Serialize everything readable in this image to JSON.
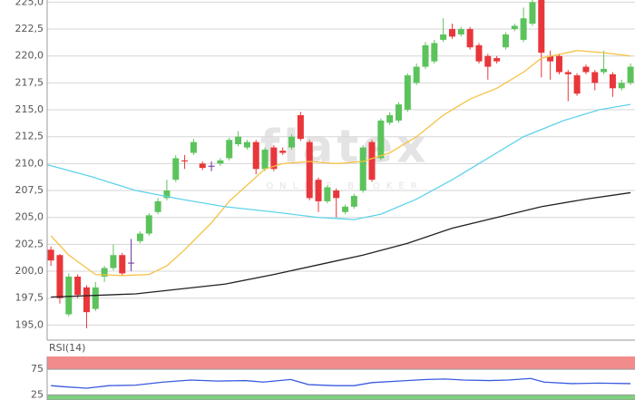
{
  "chart_data": [
    {
      "type": "candlestick",
      "watermark": {
        "text": "flatex",
        "subtitle": "ONLINE BROKER"
      },
      "xlim": [
        -0.42,
        65.5
      ],
      "ylim": [
        193.6,
        225.2
      ],
      "yticks": [
        {
          "value": 195,
          "label": "195,0"
        },
        {
          "value": 197.5,
          "label": "197,5"
        },
        {
          "value": 200,
          "label": "200,0"
        },
        {
          "value": 202.5,
          "label": "202,5"
        },
        {
          "value": 205,
          "label": "205,0"
        },
        {
          "value": 207.5,
          "label": "207,5"
        },
        {
          "value": 210,
          "label": "210,0"
        },
        {
          "value": 212.5,
          "label": "212,5"
        },
        {
          "value": 215,
          "label": "215,0"
        },
        {
          "value": 217.5,
          "label": "217,5"
        },
        {
          "value": 220,
          "label": "220,0"
        },
        {
          "value": 222.5,
          "label": "222,5"
        },
        {
          "value": 225,
          "label": "225,0"
        }
      ],
      "grid": true,
      "up_color": "#5cc35c",
      "down_color": "#e8363a",
      "flat_color": "#7030a0",
      "open": [
        202.0,
        201.5,
        196.0,
        199.5,
        198.5,
        196.5,
        199.5,
        200.3,
        201.5,
        200.8,
        202.8,
        203.5,
        205.5,
        206.8,
        208.5,
        210.3,
        211.0,
        210.0,
        209.8,
        210.0,
        210.5,
        211.8,
        211.5,
        212.0,
        209.5,
        211.5,
        211.2,
        211.5,
        214.5,
        212.0,
        208.5,
        206.5,
        207.5,
        205.5,
        206.0,
        207.5,
        212.0,
        210.5,
        213.8,
        214.0,
        215.0,
        217.5,
        219.0,
        219.5,
        221.5,
        222.5,
        222.0,
        222.5,
        221.0,
        220.0,
        219.8,
        220.8,
        222.5,
        221.5,
        223.0,
        225.2,
        220.0,
        220.0,
        218.5,
        218.2,
        219.0,
        218.5,
        218.5,
        218.3,
        217.0,
        217.5
      ],
      "high": [
        202.3,
        201.6,
        199.8,
        199.7,
        198.7,
        199.0,
        200.5,
        202.5,
        201.7,
        203.0,
        203.7,
        205.4,
        206.8,
        208.5,
        210.8,
        210.8,
        212.3,
        210.2,
        210.2,
        210.5,
        212.4,
        213.0,
        212.2,
        212.2,
        211.5,
        211.7,
        211.5,
        212.7,
        214.8,
        212.2,
        208.7,
        208.0,
        207.7,
        206.2,
        207.2,
        211.7,
        212.2,
        214.2,
        214.8,
        215.7,
        218.4,
        219.3,
        221.3,
        221.5,
        223.5,
        223.0,
        222.7,
        222.7,
        221.2,
        220.2,
        220.0,
        222.2,
        223.0,
        224.5,
        225.2,
        225.2,
        220.5,
        220.2,
        218.7,
        218.4,
        219.2,
        218.7,
        220.5,
        218.5,
        217.8,
        219.3
      ],
      "low": [
        200.5,
        197.0,
        195.8,
        197.5,
        194.7,
        196.3,
        199.0,
        200.1,
        199.6,
        200.0,
        202.6,
        203.3,
        205.3,
        206.6,
        208.3,
        209.5,
        210.8,
        209.4,
        209.3,
        209.8,
        210.3,
        211.6,
        211.3,
        209.0,
        209.3,
        209.3,
        210.8,
        211.3,
        212.1,
        206.6,
        205.5,
        206.3,
        205.0,
        205.3,
        205.8,
        207.3,
        208.3,
        210.3,
        213.6,
        213.8,
        214.8,
        217.3,
        218.8,
        219.3,
        221.3,
        221.6,
        221.8,
        220.6,
        219.3,
        217.8,
        219.3,
        220.6,
        222.3,
        221.3,
        222.8,
        218.0,
        217.8,
        218.3,
        215.8,
        216.3,
        218.3,
        216.8,
        218.3,
        216.2,
        216.8,
        217.3
      ],
      "close": [
        201.0,
        197.5,
        199.5,
        197.8,
        196.2,
        198.5,
        200.3,
        201.5,
        199.8,
        200.8,
        203.5,
        205.2,
        206.5,
        207.5,
        210.5,
        210.2,
        212.0,
        209.6,
        209.8,
        210.3,
        212.2,
        212.5,
        212.0,
        209.5,
        211.3,
        209.5,
        211.0,
        212.5,
        212.3,
        206.8,
        206.5,
        207.8,
        206.8,
        206.0,
        207.0,
        211.5,
        208.5,
        214.0,
        214.5,
        215.5,
        218.2,
        219.0,
        221.0,
        221.2,
        222.0,
        221.8,
        222.5,
        220.8,
        219.5,
        219.0,
        219.5,
        222.0,
        222.8,
        223.5,
        225.0,
        220.3,
        219.5,
        218.5,
        218.3,
        216.5,
        218.5,
        217.5,
        218.8,
        217.0,
        217.5,
        219.0
      ],
      "lines": [
        {
          "color": "#f5c242",
          "x": [
            0,
            2,
            5,
            8,
            11,
            13,
            15,
            18,
            20,
            22,
            24,
            26,
            29,
            32,
            35,
            38,
            41,
            44,
            47,
            50,
            53,
            55,
            59,
            62,
            65
          ],
          "values": [
            203.3,
            201.5,
            199.7,
            199.6,
            199.7,
            200.5,
            202.0,
            204.5,
            206.5,
            208.0,
            209.5,
            210.0,
            210.2,
            210.0,
            210.2,
            211.0,
            212.5,
            214.5,
            216.0,
            217.0,
            218.5,
            219.8,
            220.5,
            220.3,
            220.0
          ]
        },
        {
          "color": "#5fd3ea",
          "x": [
            -0.4,
            4.5,
            9.5,
            14.5,
            19.5,
            25,
            30,
            34,
            37,
            41,
            45,
            49,
            53,
            57.5,
            61.5,
            65
          ],
          "values": [
            209.9,
            208.8,
            207.5,
            206.7,
            206.0,
            205.5,
            205.0,
            204.8,
            205.3,
            206.7,
            208.5,
            210.5,
            212.5,
            214.0,
            215.0,
            215.5
          ]
        },
        {
          "color": "#222222",
          "x": [
            0,
            9.5,
            19.5,
            25,
            30,
            35,
            40,
            45,
            50,
            55,
            60,
            65
          ],
          "values": [
            197.6,
            197.9,
            198.8,
            199.7,
            200.6,
            201.5,
            202.6,
            204.0,
            205.0,
            206.0,
            206.7,
            207.3
          ]
        }
      ]
    },
    {
      "type": "line",
      "title": "RSI(14)",
      "xlim": [
        -0.42,
        65.5
      ],
      "ylim": [
        15,
        100
      ],
      "yticks": [
        25,
        75
      ],
      "bands": [
        {
          "from": 75,
          "to": 100,
          "color": "#f28b8b"
        },
        {
          "from": 15,
          "to": 25,
          "color": "#7fcf7f"
        }
      ],
      "color": "#3a5be0",
      "x": [
        0,
        1.4,
        4,
        6.5,
        9.5,
        12.6,
        15.7,
        18.7,
        21.8,
        23.8,
        26.9,
        28.9,
        31.9,
        34,
        36,
        39,
        42.1,
        44.2,
        46.2,
        49.2,
        51.3,
        53.8,
        55.3,
        58.4,
        61.4,
        65
      ],
      "values": [
        43,
        41,
        38,
        43,
        44,
        50,
        54,
        52,
        53,
        50,
        55,
        45,
        43,
        43,
        49,
        52,
        55,
        56,
        54,
        53,
        54,
        57,
        50,
        47,
        48,
        47
      ]
    }
  ]
}
